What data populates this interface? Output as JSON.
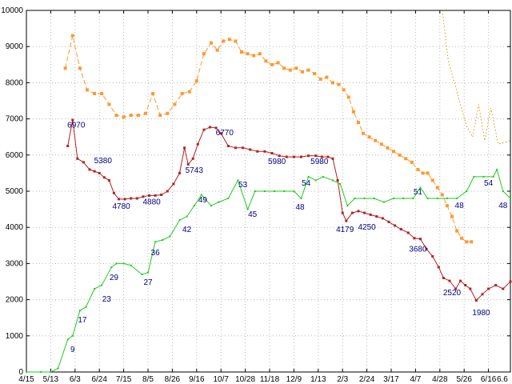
{
  "chart_data": {
    "type": "line",
    "title": "",
    "xlabel": "",
    "ylabel": "",
    "background_color": "#ffffff",
    "grid": true,
    "legend": "none",
    "border_color": "#000000",
    "grid_color": "#b8b8b8",
    "annotation_color": "#000080",
    "axis_text_color": "#000000",
    "y_axis": {
      "min": 0,
      "max": 10000,
      "tick_step": 1000,
      "tick_labels": [
        "0",
        "1000",
        "2000",
        "3000",
        "4000",
        "5000",
        "6000",
        "7000",
        "8000",
        "9000",
        "10000"
      ]
    },
    "x_axis": {
      "tick_labels": [
        "4/15",
        "5/13",
        "6/3",
        "6/24",
        "7/15",
        "8/5",
        "8/26",
        "9/16",
        "10/7",
        "10/28",
        "11/18",
        "12/9",
        "1/13",
        "2/3",
        "2/24",
        "3/17",
        "4/7",
        "4/28",
        "5/26",
        "6/16"
      ],
      "edge_label": {
        "t": 19.57,
        "label": "6.6"
      }
    },
    "series": [
      {
        "name": "upper-dashed-squares",
        "color": "#ff9830",
        "line_style": "dashed",
        "marker": "square",
        "points": [
          [
            1.6,
            8400
          ],
          [
            1.9,
            9300
          ],
          [
            2.2,
            8400
          ],
          [
            2.5,
            7800
          ],
          [
            2.8,
            7700
          ],
          [
            3.1,
            7700
          ],
          [
            3.4,
            7400
          ],
          [
            3.7,
            7100
          ],
          [
            4.0,
            7050
          ],
          [
            4.3,
            7100
          ],
          [
            4.6,
            7100
          ],
          [
            4.9,
            7150
          ],
          [
            5.2,
            7700
          ],
          [
            5.5,
            7100
          ],
          [
            5.8,
            7150
          ],
          [
            6.1,
            7400
          ],
          [
            6.4,
            7700
          ],
          [
            6.7,
            7750
          ],
          [
            7.0,
            8050
          ],
          [
            7.3,
            8800
          ],
          [
            7.6,
            9100
          ],
          [
            7.85,
            8900
          ],
          [
            8.1,
            9150
          ],
          [
            8.35,
            9200
          ],
          [
            8.6,
            9150
          ],
          [
            8.85,
            8850
          ],
          [
            9.1,
            8800
          ],
          [
            9.35,
            8750
          ],
          [
            9.6,
            8800
          ],
          [
            9.85,
            8600
          ],
          [
            10.1,
            8500
          ],
          [
            10.35,
            8550
          ],
          [
            10.6,
            8400
          ],
          [
            10.85,
            8350
          ],
          [
            11.1,
            8400
          ],
          [
            11.35,
            8300
          ],
          [
            11.6,
            8350
          ],
          [
            11.85,
            8250
          ],
          [
            12.1,
            8100
          ],
          [
            12.35,
            8150
          ],
          [
            12.6,
            8000
          ],
          [
            12.85,
            7950
          ],
          [
            13.05,
            7800
          ],
          [
            13.25,
            7600
          ],
          [
            13.45,
            7200
          ],
          [
            13.65,
            6900
          ],
          [
            13.85,
            6600
          ],
          [
            14.1,
            6500
          ],
          [
            14.35,
            6400
          ],
          [
            14.6,
            6300
          ],
          [
            14.85,
            6200
          ],
          [
            15.1,
            6100
          ],
          [
            15.35,
            6000
          ],
          [
            15.6,
            5900
          ],
          [
            15.85,
            5800
          ],
          [
            16.1,
            5600
          ],
          [
            16.3,
            5500
          ],
          [
            16.5,
            5500
          ],
          [
            16.7,
            5300
          ],
          [
            16.9,
            5100
          ],
          [
            17.1,
            4900
          ],
          [
            17.3,
            4600
          ],
          [
            17.5,
            4300
          ],
          [
            17.7,
            3900
          ],
          [
            17.9,
            3700
          ],
          [
            18.1,
            3600
          ],
          [
            18.3,
            3600
          ]
        ]
      },
      {
        "name": "dark-yellow-dotted",
        "color": "#c8a000",
        "line_style": "dotted",
        "marker": "none",
        "points": [
          [
            17.1,
            10000
          ],
          [
            17.35,
            8600
          ],
          [
            18.1,
            6800
          ],
          [
            18.35,
            6500
          ],
          [
            18.6,
            7400
          ],
          [
            18.85,
            6400
          ],
          [
            19.1,
            7300
          ],
          [
            19.4,
            6300
          ],
          [
            19.9,
            6400
          ]
        ]
      },
      {
        "name": "red-line-dots",
        "color": "#b22222",
        "line_style": "solid",
        "marker": "dot",
        "points": [
          [
            1.7,
            6250
          ],
          [
            1.9,
            6970
          ],
          [
            2.1,
            5900
          ],
          [
            2.35,
            5800
          ],
          [
            2.6,
            5600
          ],
          [
            2.8,
            5550
          ],
          [
            3.0,
            5500
          ],
          [
            3.2,
            5380
          ],
          [
            3.4,
            5300
          ],
          [
            3.6,
            4950
          ],
          [
            3.8,
            4780
          ],
          [
            4.05,
            4780
          ],
          [
            4.3,
            4800
          ],
          [
            4.55,
            4800
          ],
          [
            4.8,
            4850
          ],
          [
            5.05,
            4880
          ],
          [
            5.3,
            4880
          ],
          [
            5.55,
            4900
          ],
          [
            5.8,
            5000
          ],
          [
            6.05,
            5200
          ],
          [
            6.3,
            5500
          ],
          [
            6.5,
            6200
          ],
          [
            6.65,
            5743
          ],
          [
            6.85,
            5900
          ],
          [
            7.05,
            6300
          ],
          [
            7.3,
            6700
          ],
          [
            7.55,
            6770
          ],
          [
            7.8,
            6750
          ],
          [
            8.0,
            6600
          ],
          [
            8.3,
            6250
          ],
          [
            8.6,
            6200
          ],
          [
            8.9,
            6200
          ],
          [
            9.2,
            6150
          ],
          [
            9.5,
            6100
          ],
          [
            9.8,
            6100
          ],
          [
            10.1,
            6050
          ],
          [
            10.4,
            5980
          ],
          [
            10.7,
            5950
          ],
          [
            11.0,
            5950
          ],
          [
            11.3,
            5950
          ],
          [
            11.6,
            5980
          ],
          [
            11.9,
            5980
          ],
          [
            12.15,
            5950
          ],
          [
            12.4,
            5950
          ],
          [
            12.6,
            5900
          ],
          [
            12.8,
            5300
          ],
          [
            13.0,
            4400
          ],
          [
            13.15,
            4179
          ],
          [
            13.4,
            4400
          ],
          [
            13.65,
            4450
          ],
          [
            13.9,
            4400
          ],
          [
            14.15,
            4350
          ],
          [
            14.4,
            4300
          ],
          [
            14.65,
            4250
          ],
          [
            14.9,
            4150
          ],
          [
            15.15,
            4050
          ],
          [
            15.4,
            3950
          ],
          [
            15.7,
            3850
          ],
          [
            15.95,
            3700
          ],
          [
            16.2,
            3680
          ],
          [
            16.45,
            3400
          ],
          [
            16.7,
            3200
          ],
          [
            16.95,
            2900
          ],
          [
            17.15,
            2600
          ],
          [
            17.4,
            2520
          ],
          [
            17.65,
            2300
          ],
          [
            17.85,
            2520
          ],
          [
            18.05,
            2400
          ],
          [
            18.25,
            2300
          ],
          [
            18.5,
            1980
          ],
          [
            18.75,
            2150
          ],
          [
            19.0,
            2300
          ],
          [
            19.3,
            2400
          ],
          [
            19.6,
            2300
          ],
          [
            19.9,
            2500
          ]
        ]
      },
      {
        "name": "green-line",
        "color": "#22cc22",
        "line_style": "solid",
        "marker": "tiny",
        "points": [
          [
            0,
            0
          ],
          [
            0.6,
            0
          ],
          [
            1.0,
            0
          ],
          [
            1.3,
            100
          ],
          [
            1.7,
            900
          ],
          [
            1.9,
            1000
          ],
          [
            2.2,
            1700
          ],
          [
            2.45,
            1800
          ],
          [
            2.8,
            2300
          ],
          [
            3.1,
            2400
          ],
          [
            3.5,
            2900
          ],
          [
            3.7,
            3000
          ],
          [
            4.0,
            3000
          ],
          [
            4.3,
            2950
          ],
          [
            4.75,
            2700
          ],
          [
            5.0,
            2750
          ],
          [
            5.3,
            3600
          ],
          [
            5.6,
            3650
          ],
          [
            5.9,
            3750
          ],
          [
            6.3,
            4200
          ],
          [
            6.6,
            4300
          ],
          [
            6.9,
            4600
          ],
          [
            7.2,
            4900
          ],
          [
            7.6,
            4600
          ],
          [
            7.9,
            4700
          ],
          [
            8.3,
            4800
          ],
          [
            8.7,
            5300
          ],
          [
            9.1,
            4500
          ],
          [
            9.4,
            5000
          ],
          [
            9.8,
            5000
          ],
          [
            10.2,
            5000
          ],
          [
            10.6,
            5000
          ],
          [
            11.0,
            5000
          ],
          [
            11.3,
            4800
          ],
          [
            11.6,
            5400
          ],
          [
            11.9,
            5300
          ],
          [
            12.2,
            5400
          ],
          [
            12.6,
            5300
          ],
          [
            12.9,
            5200
          ],
          [
            13.2,
            4600
          ],
          [
            13.5,
            4800
          ],
          [
            13.9,
            4800
          ],
          [
            14.3,
            4800
          ],
          [
            14.7,
            4700
          ],
          [
            15.1,
            4800
          ],
          [
            15.5,
            4800
          ],
          [
            15.9,
            4800
          ],
          [
            16.2,
            5100
          ],
          [
            16.5,
            4800
          ],
          [
            16.9,
            4800
          ],
          [
            17.3,
            4800
          ],
          [
            17.7,
            4800
          ],
          [
            18.1,
            5000
          ],
          [
            18.4,
            5400
          ],
          [
            18.8,
            5400
          ],
          [
            19.2,
            5400
          ],
          [
            19.35,
            5600
          ],
          [
            19.6,
            5000
          ],
          [
            19.9,
            4800
          ]
        ]
      }
    ],
    "annotations": [
      {
        "text": "6970",
        "t": 2.05,
        "v": 6830
      },
      {
        "text": "5380",
        "t": 3.15,
        "v": 5840
      },
      {
        "text": "4780",
        "t": 3.9,
        "v": 4580
      },
      {
        "text": "4880",
        "t": 5.15,
        "v": 4700
      },
      {
        "text": "5743",
        "t": 6.9,
        "v": 5570
      },
      {
        "text": "6770",
        "t": 8.15,
        "v": 6610
      },
      {
        "text": "5980",
        "t": 10.3,
        "v": 5820
      },
      {
        "text": "5980",
        "t": 12.05,
        "v": 5820
      },
      {
        "text": "4179",
        "t": 13.1,
        "v": 3940
      },
      {
        "text": "4250",
        "t": 14.0,
        "v": 4000
      },
      {
        "text": "3680",
        "t": 16.1,
        "v": 3400
      },
      {
        "text": "2520",
        "t": 17.5,
        "v": 2190
      },
      {
        "text": "1980",
        "t": 18.7,
        "v": 1640
      },
      {
        "text": "9",
        "t": 1.9,
        "v": 620
      },
      {
        "text": "17",
        "t": 2.3,
        "v": 1440
      },
      {
        "text": "23",
        "t": 3.3,
        "v": 2010
      },
      {
        "text": "29",
        "t": 3.6,
        "v": 2610
      },
      {
        "text": "27",
        "t": 5.0,
        "v": 2480
      },
      {
        "text": "36",
        "t": 5.3,
        "v": 3300
      },
      {
        "text": "42",
        "t": 6.6,
        "v": 3940
      },
      {
        "text": "49",
        "t": 7.25,
        "v": 4760
      },
      {
        "text": "53",
        "t": 8.9,
        "v": 5180
      },
      {
        "text": "45",
        "t": 9.3,
        "v": 4360
      },
      {
        "text": "48",
        "t": 11.25,
        "v": 4560
      },
      {
        "text": "54",
        "t": 11.5,
        "v": 5220
      },
      {
        "text": "51",
        "t": 16.1,
        "v": 4980
      },
      {
        "text": "48",
        "t": 17.8,
        "v": 4600
      },
      {
        "text": "54",
        "t": 19.0,
        "v": 5220
      },
      {
        "text": "48",
        "t": 19.6,
        "v": 4600
      }
    ]
  }
}
